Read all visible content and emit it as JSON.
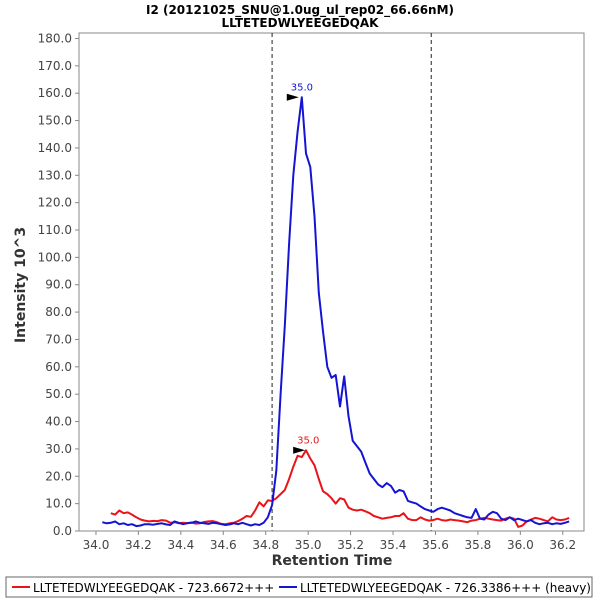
{
  "chart_data": {
    "type": "line",
    "title": "I2 (20121025_SNU@1.0ug_ul_rep02_66.66nM)",
    "subtitle": "LLTETEDWLYEEGEDQAK",
    "xlabel": "Retention Time",
    "ylabel": "Intensity 10^3",
    "xlim": [
      33.92,
      36.3
    ],
    "ylim": [
      0,
      182
    ],
    "xticks": [
      34.0,
      34.2,
      34.4,
      34.6,
      34.8,
      35.0,
      35.2,
      35.4,
      35.6,
      35.8,
      36.0,
      36.2
    ],
    "xtick_labels": [
      "34.0",
      "34.2",
      "34.4",
      "34.6",
      "34.8",
      "35.0",
      "35.2",
      "35.4",
      "35.6",
      "35.8",
      "36.0",
      "36.2"
    ],
    "yticks": [
      0,
      10,
      20,
      30,
      40,
      50,
      60,
      70,
      80,
      90,
      100,
      110,
      120,
      130,
      140,
      150,
      160,
      170,
      180
    ],
    "ytick_labels": [
      "0.0",
      "10.0",
      "20.0",
      "30.0",
      "40.0",
      "50.0",
      "60.0",
      "70.0",
      "80.0",
      "90.0",
      "100.0",
      "110.0",
      "120.0",
      "130.0",
      "140.0",
      "150.0",
      "160.0",
      "170.0",
      "180.0"
    ],
    "integration_boundaries": [
      34.83,
      35.58
    ],
    "grid": false,
    "legend_position": "bottom",
    "series": [
      {
        "name": "LLTETEDWLYEEGEDQAK - 723.6672+++",
        "color": "#e8141a",
        "peak_label": "35.0",
        "peak": {
          "x": 35.0,
          "y": 29.5
        },
        "x": [
          34.07,
          34.09,
          34.11,
          34.13,
          34.15,
          34.17,
          34.19,
          34.21,
          34.23,
          34.25,
          34.27,
          34.29,
          34.31,
          34.33,
          34.35,
          34.37,
          34.39,
          34.41,
          34.43,
          34.45,
          34.47,
          34.49,
          34.51,
          34.53,
          34.55,
          34.57,
          34.59,
          34.61,
          34.63,
          34.65,
          34.67,
          34.69,
          34.71,
          34.73,
          34.75,
          34.77,
          34.79,
          34.81,
          34.83,
          34.85,
          34.87,
          34.89,
          34.91,
          34.93,
          34.95,
          34.97,
          34.99,
          35.01,
          35.03,
          35.05,
          35.07,
          35.09,
          35.11,
          35.13,
          35.15,
          35.17,
          35.19,
          35.21,
          35.23,
          35.25,
          35.27,
          35.29,
          35.31,
          35.33,
          35.35,
          35.37,
          35.39,
          35.41,
          35.43,
          35.45,
          35.47,
          35.49,
          35.51,
          35.53,
          35.55,
          35.57,
          35.59,
          35.61,
          35.63,
          35.65,
          35.67,
          35.69,
          35.71,
          35.73,
          35.75,
          35.77,
          35.79,
          35.81,
          35.83,
          35.85,
          35.87,
          35.89,
          35.91,
          35.93,
          35.95,
          35.97,
          35.99,
          36.01,
          36.03,
          36.05,
          36.07,
          36.09,
          36.11,
          36.13,
          36.15,
          36.17,
          36.19,
          36.21,
          36.23
        ],
        "values": [
          6.5,
          6.0,
          7.5,
          6.5,
          6.8,
          6.0,
          5.0,
          4.2,
          3.8,
          3.5,
          3.7,
          3.6,
          4.0,
          3.8,
          3.0,
          3.2,
          2.8,
          3.0,
          2.9,
          3.1,
          2.7,
          2.8,
          3.3,
          3.5,
          3.6,
          3.2,
          2.6,
          2.5,
          2.8,
          3.0,
          3.6,
          4.5,
          5.5,
          5.2,
          7.5,
          10.5,
          9.0,
          11.2,
          11.0,
          12.0,
          13.5,
          15.0,
          19.0,
          23.5,
          27.5,
          27.0,
          29.5,
          26.5,
          24.0,
          19.0,
          14.5,
          13.5,
          12.0,
          10.0,
          12.0,
          11.5,
          8.5,
          7.8,
          7.5,
          7.8,
          7.2,
          6.5,
          5.5,
          5.0,
          4.5,
          4.8,
          5.0,
          5.5,
          5.5,
          6.5,
          4.5,
          4.0,
          4.0,
          5.0,
          4.2,
          3.8,
          4.0,
          4.5,
          4.0,
          3.8,
          4.2,
          4.0,
          3.8,
          3.5,
          3.2,
          3.8,
          4.0,
          4.5,
          4.8,
          4.5,
          4.2,
          4.0,
          3.8,
          4.5,
          5.0,
          4.5,
          1.5,
          2.0,
          3.5,
          4.2,
          4.8,
          4.5,
          4.0,
          3.5,
          5.0,
          4.2,
          4.0,
          4.2,
          4.8
        ]
      },
      {
        "name": "LLTETEDWLYEEGEDQAK - 726.3386+++ (heavy)",
        "color": "#1414d2",
        "peak_label": "35.0",
        "peak": {
          "x": 34.97,
          "y": 158.5
        },
        "x": [
          34.03,
          34.05,
          34.07,
          34.09,
          34.11,
          34.13,
          34.15,
          34.17,
          34.19,
          34.21,
          34.23,
          34.25,
          34.27,
          34.29,
          34.31,
          34.33,
          34.35,
          34.37,
          34.39,
          34.41,
          34.43,
          34.45,
          34.47,
          34.49,
          34.51,
          34.53,
          34.55,
          34.57,
          34.59,
          34.61,
          34.63,
          34.65,
          34.67,
          34.69,
          34.71,
          34.73,
          34.75,
          34.77,
          34.79,
          34.81,
          34.83,
          34.85,
          34.87,
          34.89,
          34.91,
          34.93,
          34.95,
          34.97,
          34.99,
          35.01,
          35.03,
          35.05,
          35.07,
          35.09,
          35.11,
          35.13,
          35.15,
          35.17,
          35.19,
          35.21,
          35.23,
          35.25,
          35.27,
          35.29,
          35.31,
          35.33,
          35.35,
          35.37,
          35.39,
          35.41,
          35.43,
          35.45,
          35.47,
          35.49,
          35.51,
          35.53,
          35.55,
          35.57,
          35.59,
          35.61,
          35.63,
          35.65,
          35.67,
          35.69,
          35.71,
          35.73,
          35.75,
          35.77,
          35.79,
          35.81,
          35.83,
          35.85,
          35.87,
          35.89,
          35.91,
          35.93,
          35.95,
          35.97,
          35.99,
          36.01,
          36.03,
          36.05,
          36.07,
          36.09,
          36.11,
          36.13,
          36.15,
          36.17,
          36.19,
          36.21,
          36.23
        ],
        "values": [
          3.2,
          2.8,
          3.0,
          3.5,
          2.5,
          2.8,
          2.2,
          2.5,
          1.8,
          2.0,
          2.5,
          2.5,
          2.3,
          2.6,
          2.8,
          2.4,
          2.2,
          3.5,
          3.0,
          2.5,
          2.8,
          3.0,
          3.5,
          3.0,
          2.8,
          2.6,
          3.0,
          2.8,
          2.5,
          2.2,
          2.4,
          2.8,
          2.5,
          3.0,
          2.5,
          2.0,
          2.5,
          2.2,
          3.0,
          5.0,
          9.5,
          22.0,
          50.0,
          75.0,
          105.0,
          130.0,
          146.0,
          158.5,
          138.0,
          133.0,
          115.0,
          87.0,
          73.0,
          60.0,
          56.0,
          57.0,
          45.5,
          56.5,
          42.0,
          33.0,
          31.0,
          29.0,
          25.0,
          21.0,
          19.0,
          17.0,
          16.0,
          17.5,
          16.5,
          14.0,
          15.0,
          14.5,
          11.0,
          10.5,
          10.0,
          9.0,
          8.0,
          7.5,
          7.0,
          8.0,
          8.5,
          8.0,
          7.5,
          6.5,
          6.0,
          5.5,
          5.0,
          4.8,
          8.0,
          4.5,
          4.2,
          6.0,
          7.0,
          6.5,
          4.5,
          4.0,
          5.0,
          4.0,
          4.5,
          4.0,
          3.5,
          4.0,
          3.0,
          2.5,
          2.8,
          3.0,
          2.5,
          2.8,
          2.6,
          3.0,
          3.5
        ]
      }
    ]
  }
}
